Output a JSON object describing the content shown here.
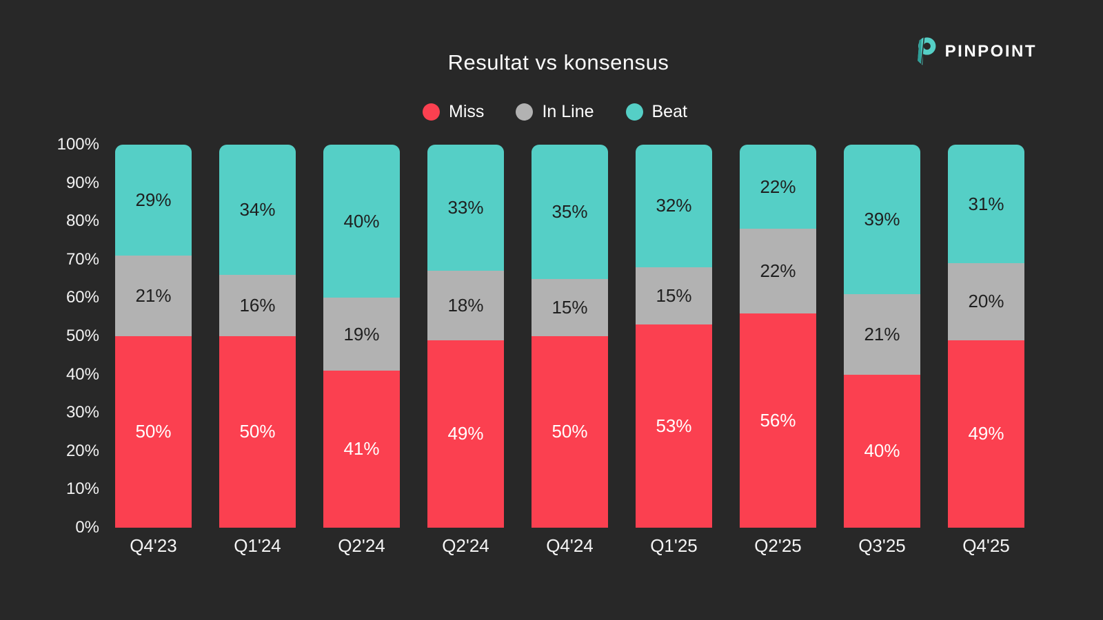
{
  "page": {
    "background": "#282828"
  },
  "logo": {
    "text": "PINPOINT",
    "icon": "pinpoint-p-icon",
    "teal": "#55CFC6",
    "teal_dark": "#2E9E97"
  },
  "legend": [
    {
      "label": "Miss",
      "color": "#FB4050"
    },
    {
      "label": "In Line",
      "color": "#B2B2B2"
    },
    {
      "label": "Beat",
      "color": "#55CFC6"
    }
  ],
  "y_axis": {
    "ticks": [
      "100%",
      "90%",
      "80%",
      "70%",
      "60%",
      "50%",
      "40%",
      "30%",
      "20%",
      "10%",
      "0%"
    ]
  },
  "chart_data": {
    "type": "bar",
    "stacked": true,
    "title": "Resultat vs konsensus",
    "categories": [
      "Q4'23",
      "Q1'24",
      "Q2'24",
      "Q2'24",
      "Q4'24",
      "Q1'25",
      "Q2'25",
      "Q3'25",
      "Q4'25"
    ],
    "series": [
      {
        "name": "Miss",
        "color": "#FB4050",
        "label_color": "#ffffff",
        "values": [
          50,
          50,
          41,
          49,
          50,
          53,
          56,
          40,
          49
        ],
        "labels": [
          "50%",
          "50%",
          "41%",
          "49%",
          "50%",
          "53%",
          "56%",
          "40%",
          "49%"
        ]
      },
      {
        "name": "In Line",
        "color": "#B2B2B2",
        "label_color": "#1f1f1f",
        "values": [
          21,
          16,
          19,
          18,
          15,
          15,
          22,
          21,
          20
        ],
        "labels": [
          "21%",
          "16%",
          "19%",
          "18%",
          "15%",
          "15%",
          "22%",
          "21%",
          "20%"
        ]
      },
      {
        "name": "Beat",
        "color": "#55CFC6",
        "label_color": "#1f1f1f",
        "values": [
          29,
          34,
          40,
          33,
          35,
          32,
          22,
          39,
          31
        ],
        "labels": [
          "29%",
          "34%",
          "40%",
          "33%",
          "35%",
          "32%",
          "22%",
          "39%",
          "31%"
        ]
      }
    ],
    "value_suffix": "%",
    "ylim": [
      0,
      100
    ],
    "grid": false,
    "legend_position": "top",
    "xlabel": "",
    "ylabel": ""
  }
}
